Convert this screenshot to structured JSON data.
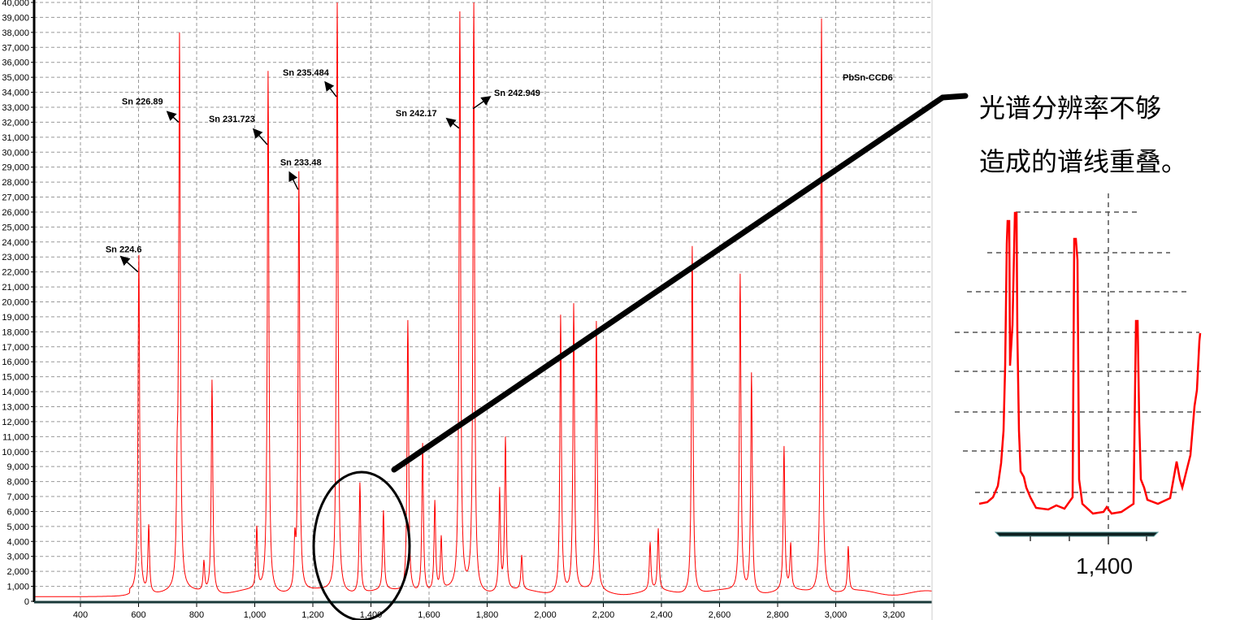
{
  "chart_data": {
    "type": "line",
    "title": "",
    "xlabel": "",
    "ylabel": "",
    "xlim": [
      240,
      3331
    ],
    "ylim": [
      0,
      40000
    ],
    "x_ticks": [
      "400",
      "600",
      "800",
      "1,000",
      "1,200",
      "1,400",
      "1,600",
      "1,800",
      "2,000",
      "2,200",
      "2,400",
      "2,600",
      "2,800",
      "3,000",
      "3,200"
    ],
    "x_tick_values": [
      400,
      600,
      800,
      1000,
      1200,
      1400,
      1600,
      1800,
      2000,
      2200,
      2400,
      2600,
      2800,
      3000,
      3200
    ],
    "y_ticks": [
      "0",
      "1,000",
      "2,000",
      "3,000",
      "4,000",
      "5,000",
      "6,000",
      "7,000",
      "8,000",
      "9,000",
      "10,000",
      "11,000",
      "12,000",
      "13,000",
      "14,000",
      "15,000",
      "16,000",
      "17,000",
      "18,000",
      "19,000",
      "20,000",
      "21,000",
      "22,000",
      "23,000",
      "24,000",
      "25,000",
      "26,000",
      "27,000",
      "28,000",
      "29,000",
      "30,000",
      "31,000",
      "32,000",
      "33,000",
      "34,000",
      "35,000",
      "36,000",
      "37,000",
      "38,000",
      "39,000",
      "40,000"
    ],
    "grid": true,
    "series_color": "#ff0000",
    "series_label": "PbSn-CCD6",
    "baseline": [
      {
        "x_max": 570,
        "y": 300
      },
      {
        "x_max": 3331,
        "y": 550
      }
    ],
    "peaks": [
      {
        "x": 601,
        "y": 22600
      },
      {
        "x": 635,
        "y": 4500
      },
      {
        "x": 733,
        "y": 5500
      },
      {
        "x": 741,
        "y": 36500
      },
      {
        "x": 825,
        "y": 2000
      },
      {
        "x": 853,
        "y": 14300
      },
      {
        "x": 1007,
        "y": 4100
      },
      {
        "x": 1046,
        "y": 34800
      },
      {
        "x": 1138,
        "y": 3000
      },
      {
        "x": 1152,
        "y": 28000
      },
      {
        "x": 1284,
        "y": 40000
      },
      {
        "x": 1362,
        "y": 7400
      },
      {
        "x": 1443,
        "y": 5300
      },
      {
        "x": 1527,
        "y": 18200
      },
      {
        "x": 1578,
        "y": 10000
      },
      {
        "x": 1620,
        "y": 6000
      },
      {
        "x": 1642,
        "y": 3500
      },
      {
        "x": 1706,
        "y": 38500
      },
      {
        "x": 1754,
        "y": 39800
      },
      {
        "x": 1843,
        "y": 6800
      },
      {
        "x": 1863,
        "y": 10200
      },
      {
        "x": 1919,
        "y": 2300
      },
      {
        "x": 2053,
        "y": 18600
      },
      {
        "x": 2098,
        "y": 19200
      },
      {
        "x": 2176,
        "y": 18000
      },
      {
        "x": 2361,
        "y": 3200
      },
      {
        "x": 2389,
        "y": 4100
      },
      {
        "x": 2506,
        "y": 23300
      },
      {
        "x": 2671,
        "y": 21200
      },
      {
        "x": 2710,
        "y": 14700
      },
      {
        "x": 2822,
        "y": 9600
      },
      {
        "x": 2845,
        "y": 3000
      },
      {
        "x": 2951,
        "y": 38500
      },
      {
        "x": 3043,
        "y": 3000
      }
    ],
    "annotations": [
      {
        "text": "Sn 224.6",
        "x": 601,
        "y": 22000
      },
      {
        "text": "Sn 226.89",
        "x": 741,
        "y": 32000
      },
      {
        "text": "Sn 231.723",
        "x": 1046,
        "y": 30500
      },
      {
        "text": "Sn 233.48",
        "x": 1152,
        "y": 27500
      },
      {
        "text": "Sn 235.484",
        "x": 1284,
        "y": 33700
      },
      {
        "text": "Sn 242.17",
        "x": 1706,
        "y": 31600
      },
      {
        "text": "Sn 242.949",
        "x": 1754,
        "y": 32900
      }
    ]
  },
  "note": {
    "line1": "光谱分辨率不够",
    "line2": "造成的谱线重叠。"
  },
  "inset": {
    "tick_label": "1,400"
  }
}
